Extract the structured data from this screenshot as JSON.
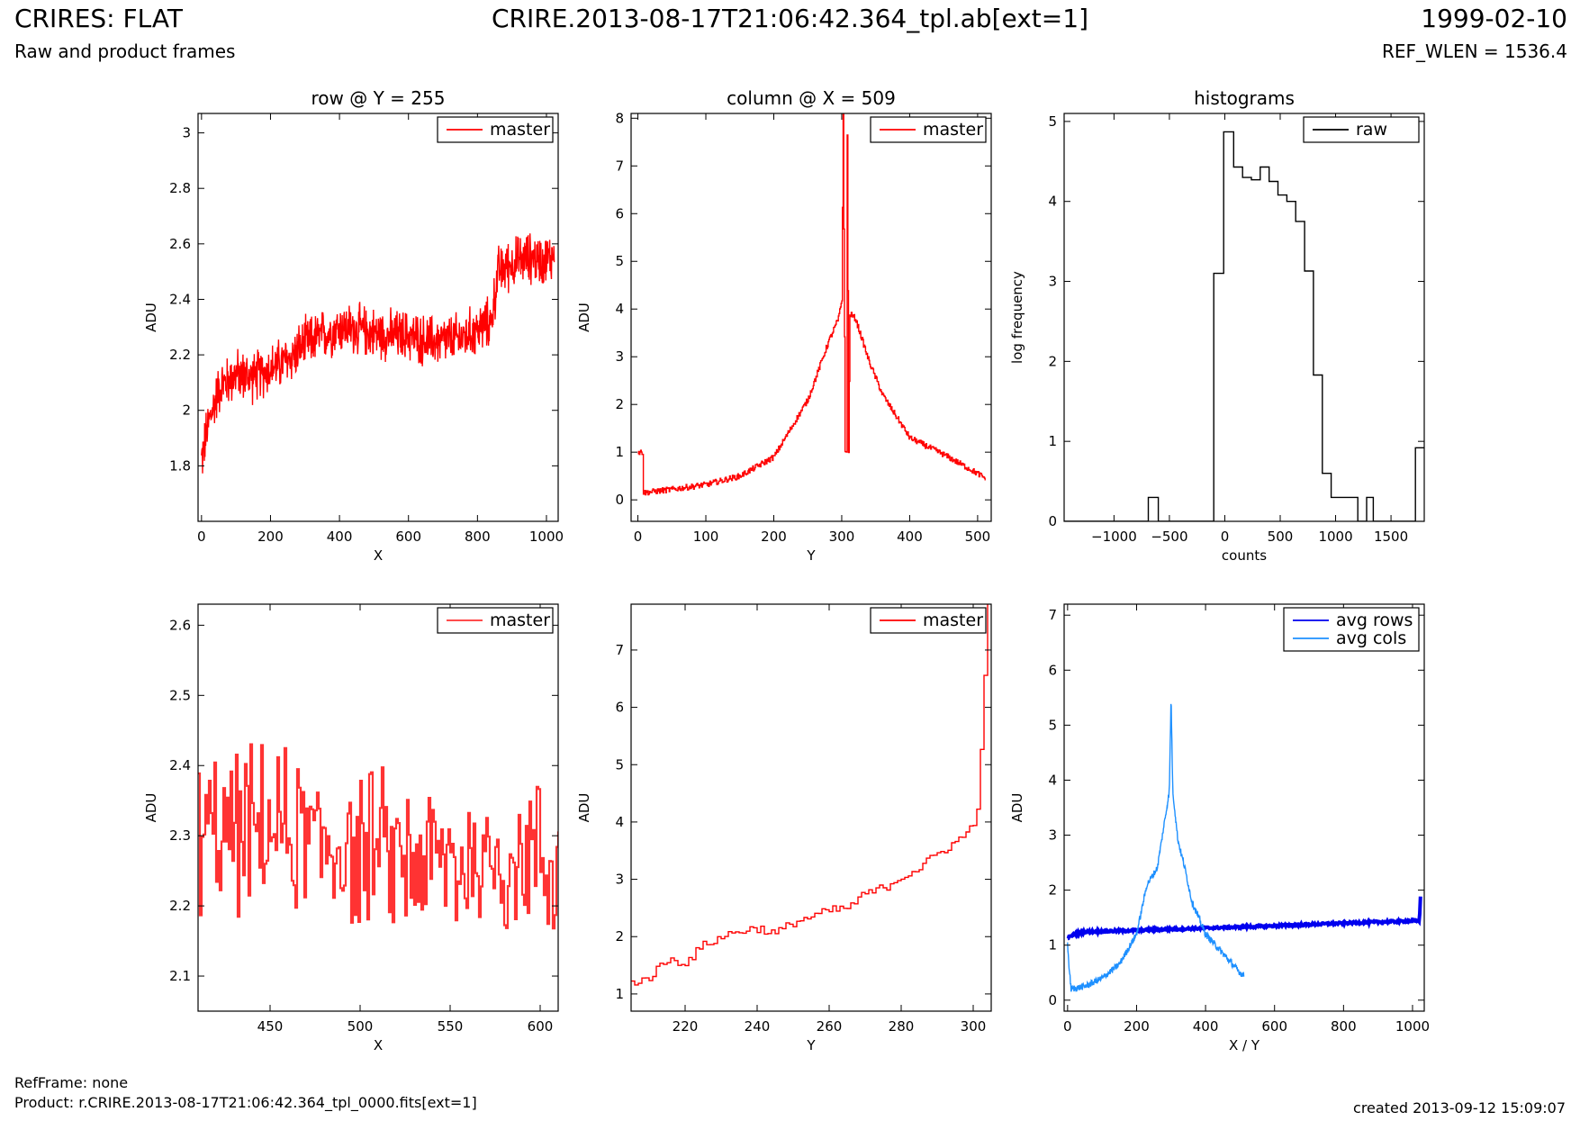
{
  "header": {
    "title_left": "CRIRES: FLAT",
    "title_center": "CRIRE.2013-08-17T21:06:42.364_tpl.ab[ext=1]",
    "title_right": "1999-02-10",
    "subtitle_left": "Raw and product frames",
    "subtitle_right": "REF_WLEN = 1536.4"
  },
  "footer": {
    "refframe": "RefFrame: none",
    "product": "Product: r.CRIRE.2013-08-17T21:06:42.364_tpl_0000.fits[ext=1]",
    "created": "created 2013-09-12 15:09:07"
  },
  "colors": {
    "master": "#ff0000",
    "master_zoom": "#ff3333",
    "raw": "#000000",
    "avg_rows": "#0000ee",
    "avg_cols": "#1e90ff"
  },
  "chart_data": [
    {
      "type": "line",
      "title": "row @ Y = 255",
      "xlabel": "X",
      "ylabel": "ADU",
      "xlim": [
        -10,
        1034
      ],
      "ylim": [
        1.6,
        3.07
      ],
      "xticks": [
        0,
        200,
        400,
        600,
        800,
        1000
      ],
      "yticks": [
        1.8,
        2.0,
        2.2,
        2.4,
        2.6,
        2.8,
        3.0
      ],
      "legend": "top-right",
      "series": [
        {
          "name": "master",
          "color": "#ff0000",
          "style": "noisy",
          "x": [
            0,
            20,
            50,
            100,
            150,
            200,
            250,
            300,
            350,
            400,
            450,
            500,
            550,
            600,
            650,
            700,
            750,
            800,
            840,
            860,
            900,
            950,
            1000,
            1023
          ],
          "y": [
            1.82,
            1.95,
            2.08,
            2.13,
            2.12,
            2.15,
            2.18,
            2.24,
            2.27,
            2.3,
            2.29,
            2.28,
            2.27,
            2.27,
            2.25,
            2.25,
            2.26,
            2.29,
            2.32,
            2.5,
            2.53,
            2.55,
            2.54,
            2.56
          ],
          "noise": 0.08
        }
      ]
    },
    {
      "type": "line",
      "title": "column @ X = 509",
      "xlabel": "Y",
      "ylabel": "ADU",
      "xlim": [
        -10,
        520
      ],
      "ylim": [
        -0.45,
        8.1
      ],
      "xticks": [
        0,
        100,
        200,
        300,
        400,
        500
      ],
      "yticks": [
        0,
        1,
        2,
        3,
        4,
        5,
        6,
        7,
        8
      ],
      "legend": "top-right",
      "series": [
        {
          "name": "master",
          "color": "#ff0000",
          "style": "step",
          "x": [
            0,
            7,
            8,
            50,
            100,
            150,
            200,
            250,
            280,
            295,
            300,
            302,
            305,
            307,
            308,
            310,
            312,
            320,
            340,
            360,
            400,
            450,
            500,
            511
          ],
          "y": [
            1.0,
            1.0,
            0.15,
            0.22,
            0.32,
            0.5,
            0.9,
            2.1,
            3.3,
            3.8,
            4.2,
            8.1,
            1.0,
            1.0,
            7.7,
            1.0,
            3.9,
            3.8,
            2.9,
            2.2,
            1.3,
            0.95,
            0.55,
            0.45
          ],
          "noise": 0.06
        }
      ]
    },
    {
      "type": "line",
      "title": "histograms",
      "xlabel": "counts",
      "ylabel": "log frequency",
      "xlim": [
        -1450,
        1800
      ],
      "ylim": [
        0,
        5.1
      ],
      "xticks": [
        -1000,
        -500,
        0,
        500,
        1000,
        1500
      ],
      "yticks": [
        0,
        1,
        2,
        3,
        4,
        5
      ],
      "legend": "top-right",
      "series": [
        {
          "name": "raw",
          "color": "#000000",
          "style": "hist",
          "x": [
            -1450,
            -690,
            -600,
            -100,
            -10,
            80,
            160,
            240,
            320,
            400,
            480,
            560,
            640,
            720,
            800,
            880,
            960,
            1040,
            1120,
            1200,
            1280,
            1340,
            1440,
            1720,
            1800
          ],
          "y": [
            0,
            0.3,
            0,
            3.1,
            4.87,
            4.43,
            4.3,
            4.27,
            4.43,
            4.25,
            4.08,
            4.0,
            3.75,
            3.13,
            1.83,
            0.6,
            0.3,
            0.3,
            0.3,
            0,
            0.3,
            0,
            0,
            0.92,
            0.92
          ]
        }
      ]
    },
    {
      "type": "line",
      "title": "",
      "xlabel": "X",
      "ylabel": "ADU",
      "xlim": [
        410,
        610
      ],
      "ylim": [
        2.05,
        2.63
      ],
      "xticks": [
        450,
        500,
        550,
        600
      ],
      "yticks": [
        2.1,
        2.2,
        2.3,
        2.4,
        2.5,
        2.6
      ],
      "legend": "top-right",
      "series": [
        {
          "name": "master",
          "color": "#ff3333",
          "style": "noisy-step",
          "x": [
            410,
            450,
            500,
            550,
            600,
            610
          ],
          "y": [
            2.3,
            2.31,
            2.28,
            2.26,
            2.27,
            2.25
          ],
          "noise": 0.1
        }
      ]
    },
    {
      "type": "line",
      "title": "",
      "xlabel": "Y",
      "ylabel": "ADU",
      "xlim": [
        205,
        305
      ],
      "ylim": [
        0.7,
        7.8
      ],
      "xticks": [
        220,
        240,
        260,
        280,
        300
      ],
      "yticks": [
        1,
        2,
        3,
        4,
        5,
        6,
        7
      ],
      "legend": "top-right",
      "series": [
        {
          "name": "master",
          "color": "#ff0000",
          "style": "step",
          "x": [
            205,
            207,
            210,
            215,
            220,
            225,
            230,
            235,
            240,
            245,
            250,
            255,
            260,
            265,
            270,
            275,
            280,
            285,
            290,
            295,
            298,
            300,
            301,
            302,
            303,
            304
          ],
          "y": [
            1.25,
            1.2,
            1.3,
            1.6,
            1.55,
            1.85,
            2.0,
            2.1,
            2.15,
            2.05,
            2.25,
            2.35,
            2.45,
            2.5,
            2.75,
            2.85,
            3.05,
            3.2,
            3.45,
            3.65,
            3.8,
            4.0,
            4.3,
            5.2,
            6.5,
            7.8
          ],
          "noise": 0.08
        }
      ]
    },
    {
      "type": "line",
      "title": "",
      "xlabel": "X / Y",
      "ylabel": "ADU",
      "xlim": [
        -10,
        1034
      ],
      "ylim": [
        -0.2,
        7.2
      ],
      "xticks": [
        0,
        200,
        400,
        600,
        800,
        1000
      ],
      "yticks": [
        0,
        1,
        2,
        3,
        4,
        5,
        6,
        7
      ],
      "legend": "top-right",
      "series": [
        {
          "name": "avg rows",
          "color": "#0000ee",
          "style": "thick",
          "x": [
            0,
            20,
            50,
            100,
            200,
            400,
            600,
            800,
            1000,
            1020,
            1023
          ],
          "y": [
            1.13,
            1.2,
            1.24,
            1.25,
            1.27,
            1.31,
            1.35,
            1.4,
            1.44,
            1.44,
            1.9
          ],
          "noise": 0.02
        },
        {
          "name": "avg cols",
          "color": "#1e90ff",
          "style": "line",
          "x": [
            0,
            5,
            10,
            50,
            100,
            150,
            200,
            230,
            260,
            280,
            295,
            300,
            305,
            310,
            320,
            340,
            360,
            400,
            450,
            500,
            511
          ],
          "y": [
            1.0,
            0.55,
            0.2,
            0.25,
            0.4,
            0.65,
            1.2,
            2.1,
            2.4,
            3.2,
            3.8,
            5.55,
            3.8,
            3.5,
            2.9,
            2.4,
            1.8,
            1.2,
            0.85,
            0.5,
            0.45
          ],
          "noise": 0.06
        }
      ]
    }
  ]
}
